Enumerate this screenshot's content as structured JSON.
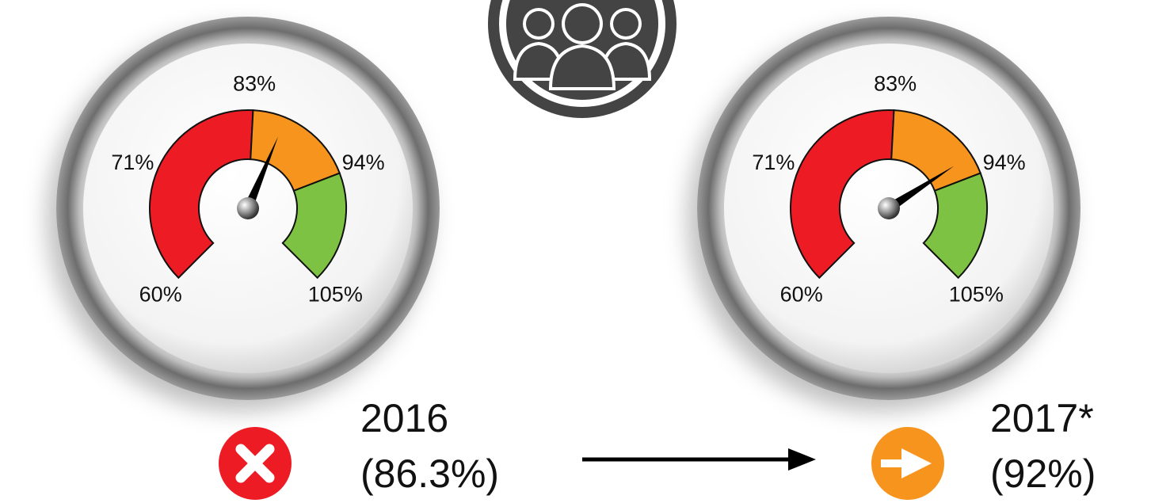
{
  "chart_data": [
    {
      "type": "gauge",
      "title": "2016",
      "values": [
        86.3
      ],
      "value_labels": [
        "(86.3%)"
      ],
      "ylim": [
        60,
        105
      ],
      "yticks": [
        {
          "value": 60,
          "label": "60%"
        },
        {
          "value": 71,
          "label": "71%"
        },
        {
          "value": 83,
          "label": "83%"
        },
        {
          "value": 94,
          "label": "94%"
        },
        {
          "value": 105,
          "label": "105%"
        }
      ],
      "bands": [
        {
          "range": [
            60,
            83
          ],
          "color": "#ed1c24"
        },
        {
          "range": [
            83,
            94
          ],
          "color": "#f7941d"
        },
        {
          "range": [
            94,
            105
          ],
          "color": "#7dc242"
        }
      ]
    },
    {
      "type": "gauge",
      "title": "2017*",
      "values": [
        92
      ],
      "value_labels": [
        "(92%)"
      ],
      "ylim": [
        60,
        105
      ],
      "yticks": [
        {
          "value": 60,
          "label": "60%"
        },
        {
          "value": 71,
          "label": "71%"
        },
        {
          "value": 83,
          "label": "83%"
        },
        {
          "value": 94,
          "label": "94%"
        },
        {
          "value": 105,
          "label": "105%"
        }
      ],
      "bands": [
        {
          "range": [
            60,
            83
          ],
          "color": "#ed1c24"
        },
        {
          "range": [
            83,
            94
          ],
          "color": "#f7941d"
        },
        {
          "range": [
            94,
            105
          ],
          "color": "#7dc242"
        }
      ]
    }
  ]
}
